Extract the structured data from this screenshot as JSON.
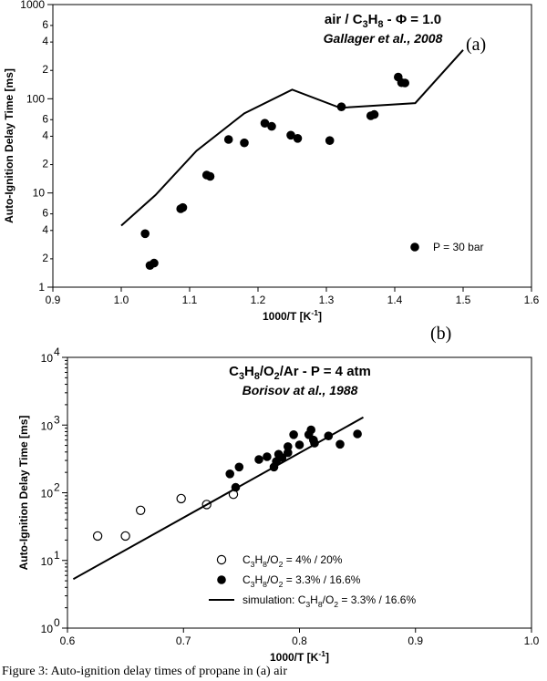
{
  "chart_data": [
    {
      "type": "scatter",
      "panel_label": "(a)",
      "title": "air / C3H8 - Φ = 1.0",
      "subtitle": "Gallager et al., 2008",
      "xlabel": "1000/T [K-1]",
      "ylabel": "Auto-Ignition Delay Time  [ms]",
      "xlim": [
        0.9,
        1.6
      ],
      "ylim": [
        1,
        1000
      ],
      "yscale": "log",
      "x_ticks": [
        "0.9",
        "1.0",
        "1.1",
        "1.2",
        "1.3",
        "1.4",
        "1.5",
        "1.6"
      ],
      "y_major_ticks": [
        "1",
        "10",
        "100",
        "1000"
      ],
      "y_minor_ticks": [
        "2",
        "4",
        "6",
        "2",
        "4",
        "6",
        "2",
        "4",
        "6"
      ],
      "legend_position": "bottom-right",
      "series": [
        {
          "name": "P = 30 bar",
          "kind": "points",
          "marker": "filled",
          "x": [
            1.035,
            1.042,
            1.048,
            1.087,
            1.09,
            1.125,
            1.13,
            1.157,
            1.18,
            1.21,
            1.22,
            1.248,
            1.258,
            1.305,
            1.322,
            1.365,
            1.37,
            1.405,
            1.41,
            1.415
          ],
          "y": [
            3.7,
            1.7,
            1.8,
            6.8,
            7.0,
            15.5,
            15.0,
            37,
            34,
            55,
            51,
            41,
            38,
            36,
            82,
            66,
            68,
            170,
            148,
            147
          ]
        },
        {
          "kind": "line",
          "x": [
            1.0,
            1.05,
            1.11,
            1.18,
            1.25,
            1.32,
            1.43,
            1.5
          ],
          "y": [
            4.5,
            9.5,
            28,
            70,
            125,
            80,
            90,
            330
          ]
        }
      ]
    },
    {
      "type": "scatter",
      "panel_label": "(b)",
      "title": "C3H8/O2/Ar  -  P = 4 atm",
      "subtitle": "Borisov at al., 1988",
      "xlabel": "1000/T [K-1]",
      "ylabel": "Auto-Ignition Delay Time [ms]",
      "xlim": [
        0.6,
        1.0
      ],
      "ylim": [
        1,
        10000
      ],
      "yscale": "log",
      "x_ticks": [
        "0.6",
        "0.7",
        "0.8",
        "0.9",
        "1.0"
      ],
      "y_ticks": [
        "10",
        "10",
        "10",
        "10",
        "10"
      ],
      "y_tick_exponents": [
        "0",
        "1",
        "2",
        "3",
        "4"
      ],
      "legend_position": "bottom-right",
      "series": [
        {
          "name": "C3H8/O2 =   4%  / 20%",
          "kind": "points",
          "marker": "open",
          "x": [
            0.626,
            0.65,
            0.663,
            0.698,
            0.72,
            0.743
          ],
          "y": [
            23,
            23,
            55,
            82,
            67,
            95
          ]
        },
        {
          "name": "C3H8/O2 = 3.3% / 16.6%",
          "kind": "points",
          "marker": "filled",
          "x": [
            0.74,
            0.745,
            0.748,
            0.765,
            0.772,
            0.778,
            0.78,
            0.782,
            0.785,
            0.79,
            0.79,
            0.795,
            0.8,
            0.808,
            0.81,
            0.812,
            0.813,
            0.825,
            0.835,
            0.85
          ],
          "y": [
            190,
            120,
            240,
            310,
            340,
            240,
            290,
            370,
            330,
            390,
            480,
            720,
            510,
            720,
            850,
            600,
            540,
            690,
            520,
            740
          ]
        },
        {
          "name": "simulation: C3H8/O2 = 3.3% / 16.6%",
          "kind": "line",
          "x": [
            0.605,
            0.855
          ],
          "y": [
            5.3,
            1300
          ]
        }
      ]
    }
  ],
  "caption": "Figure 3:  Auto-ignition delay times of propane in (a) air"
}
